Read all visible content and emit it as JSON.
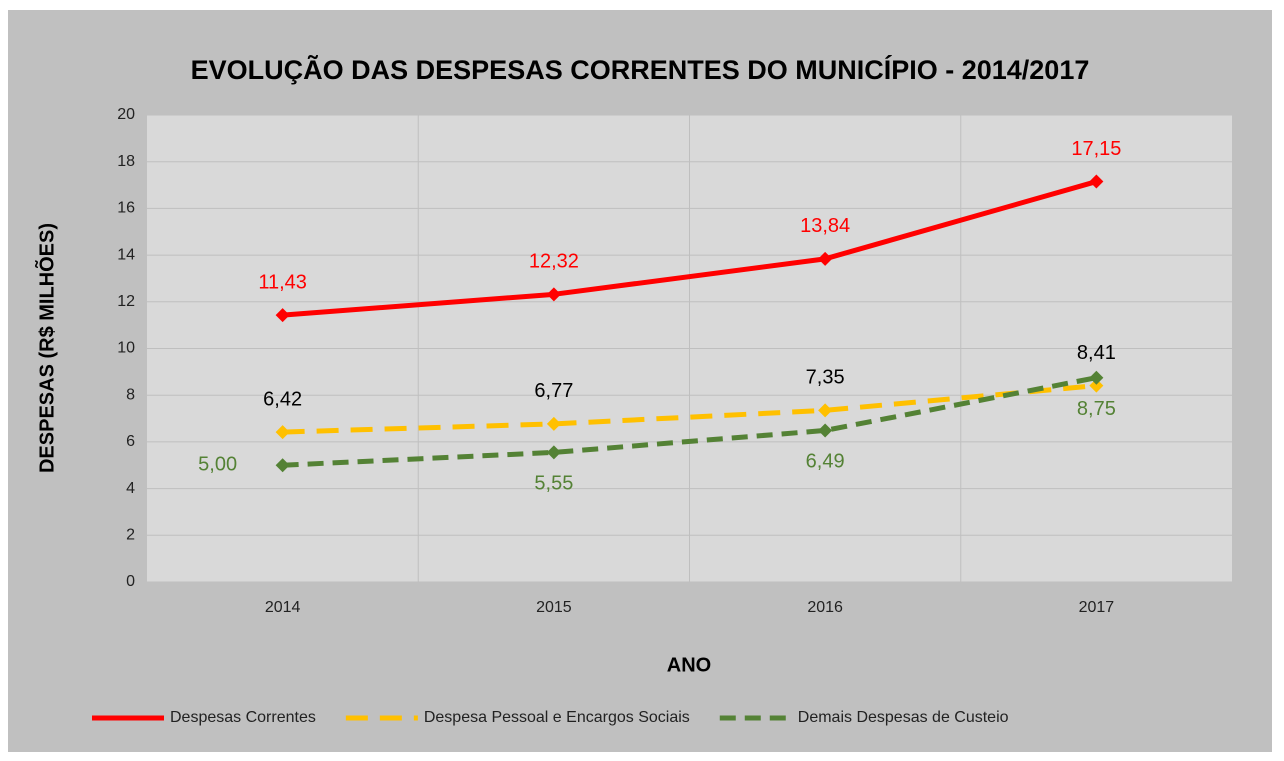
{
  "chart_data": {
    "type": "line",
    "title": "EVOLUÇÃO DAS DESPESAS CORRENTES DO MUNICÍPIO - 2014/2017",
    "y_label": "DESPESAS (R$ MILHÕES)",
    "x_label": "ANO",
    "categories": [
      "2014",
      "2015",
      "2016",
      "2017"
    ],
    "series": [
      {
        "name": "Despesas Correntes",
        "color": "#ff0000",
        "values": [
          11.43,
          12.32,
          13.84,
          17.15
        ],
        "value_labels": [
          "11,43",
          "12,32",
          "13,84",
          "17,15"
        ]
      },
      {
        "name": "Despesa Pessoal e Encargos Sociais",
        "color": "#ffc000",
        "values": [
          6.42,
          6.77,
          7.35,
          8.41
        ],
        "value_labels": [
          "6,42",
          "6,77",
          "7,35",
          "8,41"
        ]
      },
      {
        "name": "Demais Despesas de Custeio",
        "color": "#548235",
        "values": [
          5.0,
          5.55,
          6.49,
          8.75
        ],
        "value_labels": [
          "5,00",
          "5,55",
          "6,49",
          "8,75"
        ]
      }
    ],
    "ylim": [
      0,
      20
    ],
    "yticks": [
      0,
      2,
      4,
      6,
      8,
      10,
      12,
      14,
      16,
      18,
      20
    ],
    "grid": true,
    "legend": "bottom"
  }
}
